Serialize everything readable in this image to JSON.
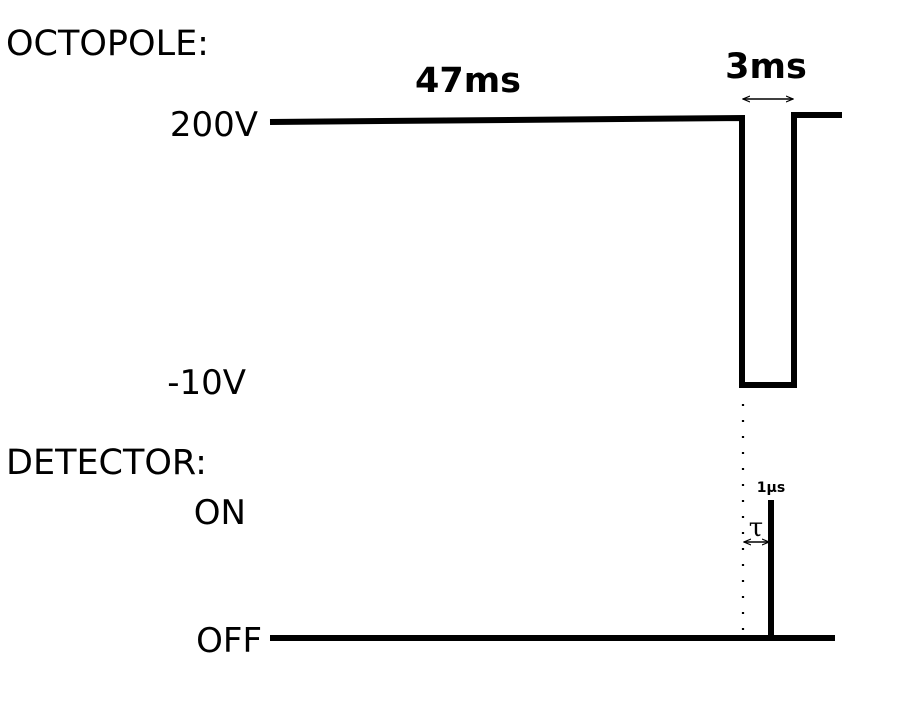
{
  "octopole": {
    "title": "OCTOPOLE:",
    "high_label": "200V",
    "low_label": "-10V",
    "long_duration": "47ms",
    "pulse_duration": "3ms"
  },
  "detector": {
    "title": "DETECTOR:",
    "on_label": "ON",
    "off_label": "OFF",
    "gate_width": "1μs",
    "delay_symbol": "τ"
  }
}
